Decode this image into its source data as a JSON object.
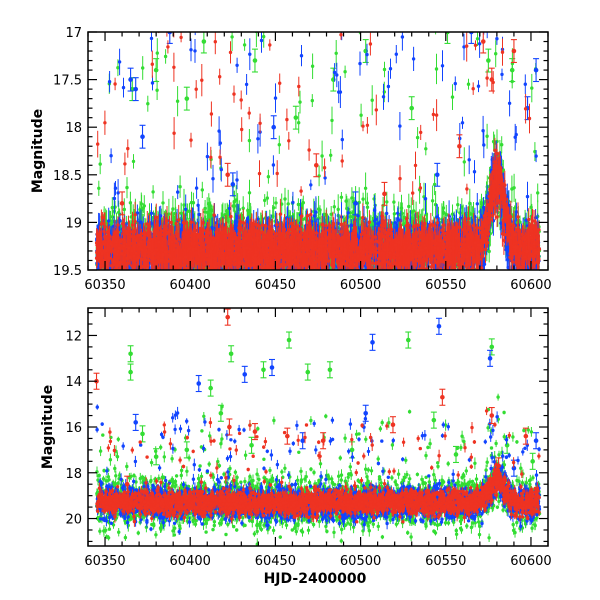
{
  "chart_data": [
    {
      "type": "scatter",
      "title": "",
      "xlabel": "",
      "ylabel": "Magnitude",
      "xlim": [
        60340,
        60610
      ],
      "ylim": [
        19.5,
        17
      ],
      "y_inverted": true,
      "xticks": [
        60350,
        60400,
        60450,
        60500,
        60550,
        60600
      ],
      "yticks": [
        17,
        17.5,
        18,
        18.5,
        19,
        19.5
      ],
      "ytick_labels": [
        "17",
        "17.5",
        "18",
        "18.5",
        "19",
        "19.5"
      ],
      "grid": false,
      "legend": "none",
      "series": [
        {
          "color": "#33dd33",
          "base": 19.25,
          "scatter": 0.2,
          "outliers": [
            [
              60366,
              17.6
            ],
            [
              60380,
              17.4
            ],
            [
              60398,
              17.7
            ],
            [
              60408,
              17.1
            ],
            [
              60438,
              17.3
            ],
            [
              60462,
              17.9
            ],
            [
              60484,
              17.5
            ],
            [
              60503,
              17.2
            ],
            [
              60530,
              17.8
            ],
            [
              60551,
              17.0
            ],
            [
              60575,
              17.3
            ],
            [
              60589,
              17.4
            ]
          ]
        },
        {
          "color": "#1144ff",
          "base": 19.3,
          "scatter": 0.15,
          "outliers": [
            [
              60365,
              17.5
            ],
            [
              60368,
              17.6
            ],
            [
              60372,
              18.1
            ],
            [
              60388,
              17.0
            ],
            [
              60425,
              18.6
            ],
            [
              60449,
              18.0
            ],
            [
              60497,
              18.8
            ],
            [
              60545,
              18.5
            ],
            [
              60565,
              17.0
            ],
            [
              60598,
              17.8
            ],
            [
              60603,
              17.4
            ]
          ]
        },
        {
          "color": "#ee3322",
          "base": 19.28,
          "scatter": 0.12,
          "outliers": [
            [
              60360,
              18.8
            ],
            [
              60422,
              18.5
            ],
            [
              60474,
              18.4
            ],
            [
              60514,
              18.7
            ],
            [
              60558,
              18.2
            ],
            [
              60572,
              17.1
            ],
            [
              60577,
              17.5
            ],
            [
              60590,
              17.2
            ]
          ]
        }
      ],
      "features": [
        {
          "x": 60580,
          "peak": 18.55,
          "width": 6
        }
      ]
    },
    {
      "type": "scatter",
      "title": "",
      "xlabel": "HJD-2400000",
      "ylabel": "Magnitude",
      "xlim": [
        60340,
        60610
      ],
      "ylim": [
        21.2,
        10.8
      ],
      "y_inverted": true,
      "xticks": [
        60350,
        60400,
        60450,
        60500,
        60550,
        60600
      ],
      "yticks": [
        12,
        14,
        16,
        18,
        20
      ],
      "ytick_labels": [
        "12",
        "14",
        "16",
        "18",
        "20"
      ],
      "grid": false,
      "legend": "none",
      "series": [
        {
          "color": "#33dd33",
          "base": 19.3,
          "scatter": 0.55,
          "outliers": [
            [
              60365,
              12.8
            ],
            [
              60365,
              13.6
            ],
            [
              60372,
              16.3
            ],
            [
              60380,
              17.3
            ],
            [
              60398,
              17.0
            ],
            [
              60412,
              14.3
            ],
            [
              60418,
              15.4
            ],
            [
              60424,
              12.8
            ],
            [
              60436,
              16.8
            ],
            [
              60443,
              13.5
            ],
            [
              60458,
              12.2
            ],
            [
              60469,
              13.6
            ],
            [
              60482,
              13.5
            ],
            [
              60495,
              17.0
            ],
            [
              60528,
              12.2
            ],
            [
              60543,
              15.7
            ],
            [
              60556,
              17.2
            ],
            [
              60577,
              12.5
            ],
            [
              60586,
              16.8
            ],
            [
              60601,
              17.5
            ]
          ]
        },
        {
          "color": "#1144ff",
          "base": 19.3,
          "scatter": 0.35,
          "outliers": [
            [
              60368,
              15.8
            ],
            [
              60405,
              14.1
            ],
            [
              60432,
              13.7
            ],
            [
              60448,
              13.4
            ],
            [
              60466,
              16.6
            ],
            [
              60503,
              15.4
            ],
            [
              60507,
              12.3
            ],
            [
              60546,
              11.6
            ],
            [
              60576,
              13.0
            ],
            [
              60590,
              17.8
            ],
            [
              60603,
              16.6
            ]
          ]
        },
        {
          "color": "#ee3322",
          "base": 19.3,
          "scatter": 0.25,
          "outliers": [
            [
              60345,
              14.0
            ],
            [
              60363,
              18.5
            ],
            [
              60422,
              11.2
            ],
            [
              60423,
              16.0
            ],
            [
              60438,
              16.2
            ],
            [
              60457,
              16.4
            ],
            [
              60478,
              16.6
            ],
            [
              60519,
              15.9
            ],
            [
              60548,
              14.7
            ],
            [
              60577,
              15.5
            ],
            [
              60581,
              17.7
            ],
            [
              60597,
              16.4
            ]
          ]
        }
      ],
      "features": [
        {
          "x": 60580,
          "peak": 18.3,
          "width": 6
        }
      ]
    }
  ]
}
